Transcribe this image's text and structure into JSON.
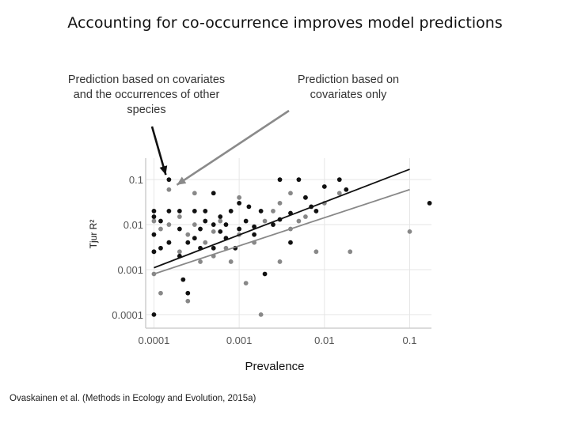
{
  "title": "Accounting for co-occurrence improves model predictions",
  "annotations": {
    "left": "Prediction based on covariates and the occurrences of other species",
    "right": "Prediction based on covariates only"
  },
  "citation": "Ovaskainen et al. (Methods in Ecology and Evolution, 2015a)",
  "colors": {
    "with_cooccurrence": "#111111",
    "covariates_only": "#888888",
    "grid": "#e6e6e6",
    "axis": "#cfcfcf"
  },
  "chart_data": {
    "type": "scatter",
    "xlabel": "Prevalence",
    "ylabel": "Tjur R²",
    "x_scale": "log",
    "y_scale": "log",
    "xlim": [
      8e-05,
      0.18
    ],
    "ylim": [
      5e-05,
      0.3
    ],
    "x_ticks": [
      "0.0001",
      "0.001",
      "0.01",
      "0.1"
    ],
    "y_ticks": [
      "0.1",
      "0.01",
      "0.001",
      "0.0001"
    ],
    "grid": false,
    "series": [
      {
        "color": "black",
        "points": [
          [
            0.0001,
            0.0001
          ],
          [
            0.0001,
            0.0025
          ],
          [
            0.0001,
            0.006
          ],
          [
            0.0001,
            0.015
          ],
          [
            0.0001,
            0.02
          ],
          [
            0.00012,
            0.003
          ],
          [
            0.00012,
            0.012
          ],
          [
            0.00015,
            0.004
          ],
          [
            0.00015,
            0.02
          ],
          [
            0.00015,
            0.1
          ],
          [
            0.0002,
            0.002
          ],
          [
            0.0002,
            0.008
          ],
          [
            0.0002,
            0.02
          ],
          [
            0.00022,
            0.0006
          ],
          [
            0.00025,
            0.0003
          ],
          [
            0.00025,
            0.004
          ],
          [
            0.0003,
            0.005
          ],
          [
            0.0003,
            0.02
          ],
          [
            0.00035,
            0.003
          ],
          [
            0.00035,
            0.008
          ],
          [
            0.0004,
            0.012
          ],
          [
            0.0004,
            0.02
          ],
          [
            0.0005,
            0.003
          ],
          [
            0.0005,
            0.01
          ],
          [
            0.0005,
            0.05
          ],
          [
            0.0006,
            0.007
          ],
          [
            0.0006,
            0.015
          ],
          [
            0.0007,
            0.005
          ],
          [
            0.0007,
            0.01
          ],
          [
            0.0008,
            0.02
          ],
          [
            0.0009,
            0.003
          ],
          [
            0.001,
            0.008
          ],
          [
            0.001,
            0.03
          ],
          [
            0.0012,
            0.012
          ],
          [
            0.0013,
            0.025
          ],
          [
            0.0015,
            0.006
          ],
          [
            0.0015,
            0.009
          ],
          [
            0.0018,
            0.02
          ],
          [
            0.002,
            0.0008
          ],
          [
            0.0025,
            0.01
          ],
          [
            0.003,
            0.013
          ],
          [
            0.003,
            0.1
          ],
          [
            0.004,
            0.004
          ],
          [
            0.004,
            0.018
          ],
          [
            0.005,
            0.1
          ],
          [
            0.006,
            0.04
          ],
          [
            0.007,
            0.025
          ],
          [
            0.008,
            0.02
          ],
          [
            0.01,
            0.07
          ],
          [
            0.015,
            0.1
          ],
          [
            0.25,
            0.03
          ],
          [
            0.018,
            0.06
          ]
        ],
        "fit": [
          [
            0.0001,
            0.0011
          ],
          [
            0.1,
            0.17
          ]
        ]
      },
      {
        "color": "gray",
        "points": [
          [
            0.0001,
            0.0008
          ],
          [
            0.0001,
            0.0025
          ],
          [
            0.0001,
            0.012
          ],
          [
            0.00012,
            0.0003
          ],
          [
            0.00012,
            0.008
          ],
          [
            0.00015,
            0.004
          ],
          [
            0.00015,
            0.01
          ],
          [
            0.00015,
            0.06
          ],
          [
            0.0002,
            0.0025
          ],
          [
            0.0002,
            0.015
          ],
          [
            0.00025,
            0.0002
          ],
          [
            0.00025,
            0.006
          ],
          [
            0.0003,
            0.01
          ],
          [
            0.0003,
            0.05
          ],
          [
            0.00035,
            0.0015
          ],
          [
            0.0004,
            0.004
          ],
          [
            0.0005,
            0.002
          ],
          [
            0.0005,
            0.007
          ],
          [
            0.0006,
            0.012
          ],
          [
            0.0007,
            0.003
          ],
          [
            0.0008,
            0.0015
          ],
          [
            0.001,
            0.006
          ],
          [
            0.001,
            0.04
          ],
          [
            0.0012,
            0.0005
          ],
          [
            0.0015,
            0.004
          ],
          [
            0.0018,
            0.0001
          ],
          [
            0.002,
            0.012
          ],
          [
            0.0025,
            0.02
          ],
          [
            0.003,
            0.0015
          ],
          [
            0.004,
            0.008
          ],
          [
            0.005,
            0.012
          ],
          [
            0.006,
            0.015
          ],
          [
            0.008,
            0.0025
          ],
          [
            0.01,
            0.03
          ],
          [
            0.015,
            0.05
          ],
          [
            0.02,
            0.0025
          ],
          [
            0.1,
            0.007
          ],
          [
            0.004,
            0.05
          ],
          [
            0.006,
            0.04
          ],
          [
            0.003,
            0.03
          ]
        ],
        "fit": [
          [
            0.0001,
            0.0008
          ],
          [
            0.1,
            0.06
          ]
        ]
      }
    ]
  }
}
